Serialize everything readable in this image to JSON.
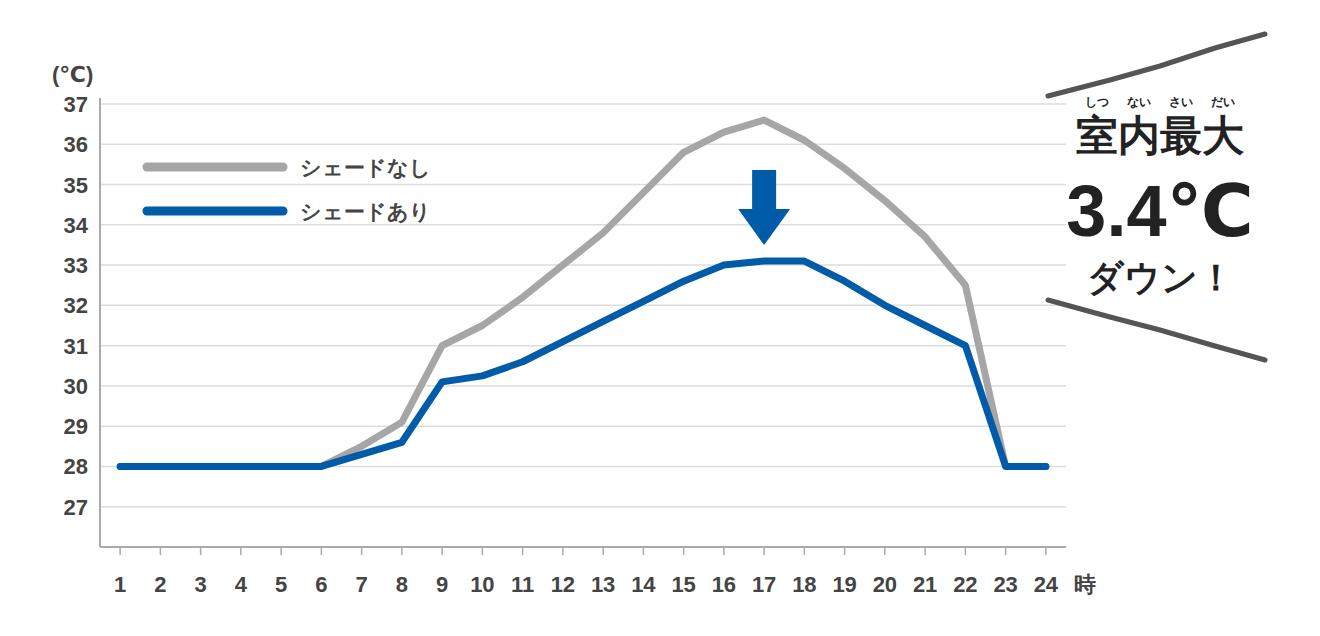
{
  "chart_data": {
    "type": "line",
    "x": [
      1,
      2,
      3,
      4,
      5,
      6,
      7,
      8,
      9,
      10,
      11,
      12,
      13,
      14,
      15,
      16,
      17,
      18,
      19,
      20,
      21,
      22,
      23,
      24
    ],
    "xlim": [
      0.5,
      24.5
    ],
    "xticks": [
      1,
      2,
      3,
      4,
      5,
      6,
      7,
      8,
      9,
      10,
      11,
      12,
      13,
      14,
      15,
      16,
      17,
      18,
      19,
      20,
      21,
      22,
      23,
      24
    ],
    "x_label": "時",
    "y_label": "(℃)",
    "ylim": [
      26,
      37
    ],
    "yticks": [
      27,
      28,
      29,
      30,
      31,
      32,
      33,
      34,
      35,
      36,
      37
    ],
    "grid": true,
    "legend": "top-left",
    "series": [
      {
        "name": "シェードなし",
        "color": "#a6a6a6",
        "values": [
          28,
          28,
          28,
          28,
          28,
          28,
          28.5,
          29.1,
          31.0,
          31.5,
          32.2,
          33.0,
          33.8,
          34.8,
          35.8,
          36.3,
          36.6,
          36.1,
          35.4,
          34.6,
          33.7,
          32.5,
          28,
          28
        ]
      },
      {
        "name": "シェードあり",
        "color": "#005ca8",
        "values": [
          28,
          28,
          28,
          28,
          28,
          28,
          28.3,
          28.6,
          30.1,
          30.25,
          30.6,
          31.1,
          31.6,
          32.1,
          32.6,
          33.0,
          33.1,
          33.1,
          32.6,
          32.0,
          31.5,
          31.0,
          28,
          28
        ]
      }
    ],
    "annotations": [
      {
        "text": "室内最大",
        "ruby": [
          "しつ",
          "ない",
          "さい",
          "だい"
        ]
      },
      {
        "text": "3.4℃"
      },
      {
        "text": "ダウン！"
      }
    ]
  }
}
